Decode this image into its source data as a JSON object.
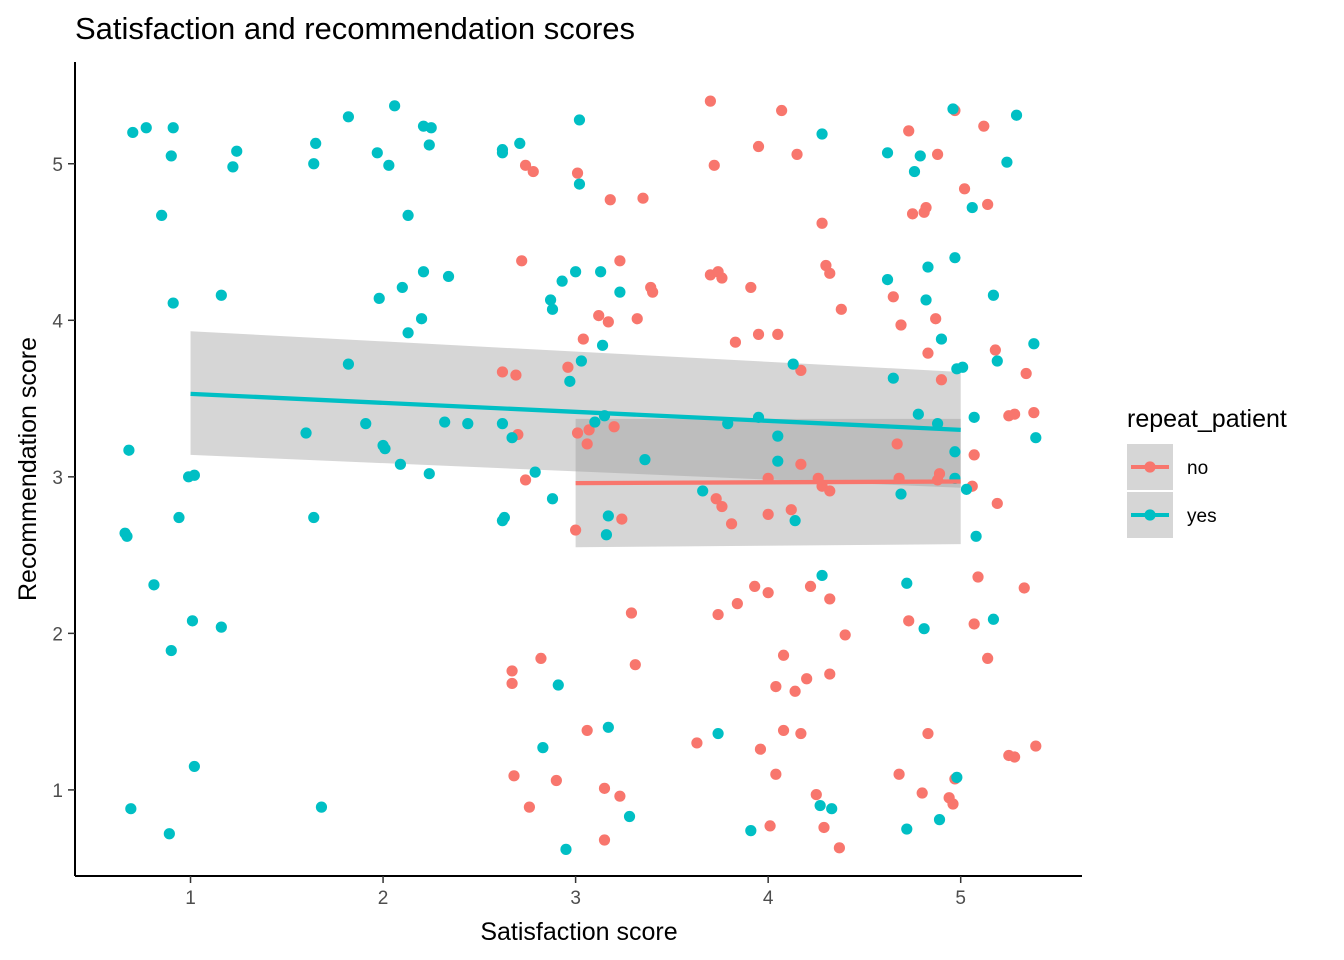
{
  "chart_data": {
    "type": "scatter",
    "title": "Satisfaction and recommendation scores",
    "xlabel": "Satisfaction score",
    "ylabel": "Recommendation score",
    "xlim": [
      0.4,
      5.63
    ],
    "ylim": [
      0.45,
      5.65
    ],
    "x_ticks": [
      "1",
      "2",
      "3",
      "4",
      "5"
    ],
    "y_ticks": [
      "1",
      "2",
      "3",
      "4",
      "5"
    ],
    "grid": false,
    "legend": {
      "title": "repeat_patient",
      "position": "right",
      "entries": [
        "no",
        "yes"
      ]
    },
    "colors": {
      "no": "#F8766D",
      "yes": "#00BFC4",
      "ribbon": "#999999"
    },
    "series": [
      {
        "name": "no",
        "points": [
          [
            3.7,
            5.4
          ],
          [
            3.72,
            4.99
          ],
          [
            3.95,
            5.11
          ],
          [
            4.07,
            5.34
          ],
          [
            4.15,
            5.06
          ],
          [
            4.28,
            4.62
          ],
          [
            3.01,
            4.94
          ],
          [
            2.74,
            4.99
          ],
          [
            2.78,
            4.95
          ],
          [
            3.18,
            4.77
          ],
          [
            3.35,
            4.78
          ],
          [
            3.7,
            4.29
          ],
          [
            3.74,
            4.31
          ],
          [
            3.76,
            4.27
          ],
          [
            2.72,
            4.38
          ],
          [
            3.23,
            4.38
          ],
          [
            3.39,
            4.21
          ],
          [
            3.4,
            4.18
          ],
          [
            3.91,
            4.21
          ],
          [
            4.3,
            4.35
          ],
          [
            4.32,
            4.3
          ],
          [
            4.38,
            4.07
          ],
          [
            3.12,
            4.03
          ],
          [
            3.17,
            3.99
          ],
          [
            3.32,
            4.01
          ],
          [
            3.04,
            3.88
          ],
          [
            3.95,
            3.91
          ],
          [
            4.05,
            3.91
          ],
          [
            3.83,
            3.86
          ],
          [
            4.17,
            3.68
          ],
          [
            2.62,
            3.67
          ],
          [
            2.69,
            3.65
          ],
          [
            2.96,
            3.7
          ],
          [
            2.7,
            3.27
          ],
          [
            3.01,
            3.28
          ],
          [
            3.07,
            3.3
          ],
          [
            3.06,
            3.21
          ],
          [
            3.2,
            3.32
          ],
          [
            2.74,
            2.98
          ],
          [
            3.0,
            2.66
          ],
          [
            3.24,
            2.73
          ],
          [
            3.73,
            2.86
          ],
          [
            3.76,
            2.81
          ],
          [
            3.81,
            2.7
          ],
          [
            4.0,
            2.99
          ],
          [
            4.17,
            3.08
          ],
          [
            4.0,
            2.76
          ],
          [
            4.12,
            2.79
          ],
          [
            4.26,
            2.99
          ],
          [
            4.28,
            2.94
          ],
          [
            4.32,
            2.91
          ],
          [
            3.74,
            2.12
          ],
          [
            3.84,
            2.19
          ],
          [
            3.93,
            2.3
          ],
          [
            4.0,
            2.26
          ],
          [
            4.22,
            2.3
          ],
          [
            4.32,
            2.22
          ],
          [
            4.4,
            1.99
          ],
          [
            4.08,
            1.86
          ],
          [
            4.04,
            1.66
          ],
          [
            4.14,
            1.63
          ],
          [
            4.2,
            1.71
          ],
          [
            4.32,
            1.74
          ],
          [
            3.29,
            2.13
          ],
          [
            3.31,
            1.8
          ],
          [
            2.82,
            1.84
          ],
          [
            2.67,
            1.76
          ],
          [
            2.67,
            1.68
          ],
          [
            3.06,
            1.38
          ],
          [
            3.63,
            1.3
          ],
          [
            3.96,
            1.26
          ],
          [
            4.08,
            1.38
          ],
          [
            4.17,
            1.36
          ],
          [
            2.68,
            1.09
          ],
          [
            2.9,
            1.06
          ],
          [
            3.15,
            1.01
          ],
          [
            3.23,
            0.96
          ],
          [
            4.04,
            1.1
          ],
          [
            4.25,
            0.97
          ],
          [
            2.76,
            0.89
          ],
          [
            3.15,
            0.68
          ],
          [
            4.01,
            0.77
          ],
          [
            4.29,
            0.76
          ],
          [
            4.37,
            0.63
          ],
          [
            4.73,
            5.21
          ],
          [
            4.88,
            5.06
          ],
          [
            4.97,
            5.34
          ],
          [
            5.02,
            4.84
          ],
          [
            5.12,
            5.24
          ],
          [
            5.14,
            4.74
          ],
          [
            4.75,
            4.68
          ],
          [
            4.81,
            4.69
          ],
          [
            4.82,
            4.72
          ],
          [
            4.65,
            4.15
          ],
          [
            4.69,
            3.97
          ],
          [
            4.87,
            4.01
          ],
          [
            4.83,
            3.79
          ],
          [
            4.9,
            3.62
          ],
          [
            5.18,
            3.81
          ],
          [
            5.34,
            3.66
          ],
          [
            5.25,
            3.39
          ],
          [
            5.28,
            3.4
          ],
          [
            5.38,
            3.41
          ],
          [
            4.67,
            3.21
          ],
          [
            4.68,
            2.99
          ],
          [
            4.88,
            2.98
          ],
          [
            4.89,
            3.02
          ],
          [
            5.07,
            3.14
          ],
          [
            5.06,
            2.94
          ],
          [
            5.19,
            2.83
          ],
          [
            4.73,
            2.08
          ],
          [
            5.07,
            2.06
          ],
          [
            5.09,
            2.36
          ],
          [
            5.14,
            1.84
          ],
          [
            5.33,
            2.29
          ],
          [
            4.83,
            1.36
          ],
          [
            4.68,
            1.1
          ],
          [
            4.8,
            0.98
          ],
          [
            4.94,
            0.95
          ],
          [
            4.96,
            0.91
          ],
          [
            4.97,
            1.07
          ],
          [
            5.25,
            1.22
          ],
          [
            5.28,
            1.21
          ],
          [
            5.39,
            1.28
          ]
        ]
      },
      {
        "name": "yes",
        "points": [
          [
            0.7,
            5.2
          ],
          [
            0.77,
            5.23
          ],
          [
            0.91,
            5.23
          ],
          [
            0.9,
            5.05
          ],
          [
            0.85,
            4.67
          ],
          [
            0.91,
            4.11
          ],
          [
            1.16,
            4.16
          ],
          [
            1.22,
            4.98
          ],
          [
            1.24,
            5.08
          ],
          [
            1.64,
            5.0
          ],
          [
            1.65,
            5.13
          ],
          [
            1.82,
            5.3
          ],
          [
            1.97,
            5.07
          ],
          [
            2.03,
            4.99
          ],
          [
            2.06,
            5.37
          ],
          [
            2.21,
            5.24
          ],
          [
            2.25,
            5.23
          ],
          [
            2.24,
            5.12
          ],
          [
            2.13,
            4.67
          ],
          [
            1.98,
            4.14
          ],
          [
            2.1,
            4.21
          ],
          [
            2.21,
            4.31
          ],
          [
            2.34,
            4.28
          ],
          [
            2.2,
            4.01
          ],
          [
            2.13,
            3.92
          ],
          [
            1.82,
            3.72
          ],
          [
            1.91,
            3.34
          ],
          [
            2.0,
            3.2
          ],
          [
            2.01,
            3.18
          ],
          [
            2.09,
            3.08
          ],
          [
            2.24,
            3.02
          ],
          [
            2.32,
            3.35
          ],
          [
            2.44,
            3.34
          ],
          [
            1.6,
            3.28
          ],
          [
            1.64,
            2.74
          ],
          [
            0.68,
            3.17
          ],
          [
            0.99,
            3.0
          ],
          [
            1.02,
            3.01
          ],
          [
            0.94,
            2.74
          ],
          [
            0.66,
            2.64
          ],
          [
            0.67,
            2.62
          ],
          [
            0.81,
            2.31
          ],
          [
            1.01,
            2.08
          ],
          [
            1.16,
            2.04
          ],
          [
            0.9,
            1.89
          ],
          [
            1.02,
            1.15
          ],
          [
            0.69,
            0.88
          ],
          [
            0.89,
            0.72
          ],
          [
            1.68,
            0.89
          ],
          [
            2.62,
            5.09
          ],
          [
            2.62,
            5.07
          ],
          [
            2.71,
            5.13
          ],
          [
            3.02,
            5.28
          ],
          [
            3.02,
            4.87
          ],
          [
            2.87,
            4.13
          ],
          [
            2.88,
            4.07
          ],
          [
            2.93,
            4.25
          ],
          [
            3.0,
            4.31
          ],
          [
            3.13,
            4.31
          ],
          [
            3.23,
            4.18
          ],
          [
            3.03,
            3.74
          ],
          [
            3.14,
            3.84
          ],
          [
            2.97,
            3.61
          ],
          [
            2.62,
            3.34
          ],
          [
            2.67,
            3.25
          ],
          [
            3.1,
            3.35
          ],
          [
            3.15,
            3.39
          ],
          [
            3.36,
            3.11
          ],
          [
            2.79,
            3.03
          ],
          [
            2.88,
            2.86
          ],
          [
            2.62,
            2.72
          ],
          [
            2.63,
            2.74
          ],
          [
            3.17,
            2.75
          ],
          [
            3.16,
            2.63
          ],
          [
            2.91,
            1.67
          ],
          [
            2.83,
            1.27
          ],
          [
            3.17,
            1.4
          ],
          [
            2.95,
            0.62
          ],
          [
            3.28,
            0.83
          ],
          [
            3.66,
            2.91
          ],
          [
            3.74,
            1.36
          ],
          [
            3.91,
            0.74
          ],
          [
            3.79,
            3.34
          ],
          [
            3.95,
            3.38
          ],
          [
            4.05,
            3.26
          ],
          [
            4.05,
            3.1
          ],
          [
            4.13,
            3.72
          ],
          [
            4.14,
            2.72
          ],
          [
            4.28,
            2.37
          ],
          [
            4.28,
            5.19
          ],
          [
            4.27,
            0.9
          ],
          [
            4.33,
            0.88
          ],
          [
            4.62,
            5.07
          ],
          [
            4.76,
            4.95
          ],
          [
            4.79,
            5.05
          ],
          [
            4.62,
            4.26
          ],
          [
            4.83,
            4.34
          ],
          [
            4.82,
            4.13
          ],
          [
            4.9,
            3.88
          ],
          [
            4.97,
            4.4
          ],
          [
            4.96,
            5.35
          ],
          [
            5.06,
            4.72
          ],
          [
            5.17,
            4.16
          ],
          [
            4.65,
            3.63
          ],
          [
            4.78,
            3.4
          ],
          [
            4.88,
            3.34
          ],
          [
            4.69,
            2.89
          ],
          [
            4.98,
            3.69
          ],
          [
            5.01,
            3.7
          ],
          [
            5.19,
            3.74
          ],
          [
            5.07,
            3.38
          ],
          [
            4.97,
            3.16
          ],
          [
            4.97,
            2.99
          ],
          [
            5.03,
            2.92
          ],
          [
            5.08,
            2.62
          ],
          [
            5.24,
            5.01
          ],
          [
            5.29,
            5.31
          ],
          [
            5.38,
            3.85
          ],
          [
            5.39,
            3.25
          ],
          [
            4.72,
            2.32
          ],
          [
            4.81,
            2.03
          ],
          [
            5.17,
            2.09
          ],
          [
            4.98,
            1.08
          ],
          [
            4.72,
            0.75
          ],
          [
            4.89,
            0.81
          ]
        ]
      }
    ],
    "fits": [
      {
        "name": "no",
        "x": [
          3,
          5
        ],
        "y": [
          2.96,
          2.97
        ],
        "ci_lower": [
          2.55,
          2.57
        ],
        "ci_upper": [
          3.37,
          3.37
        ]
      },
      {
        "name": "yes",
        "x": [
          1,
          5
        ],
        "y": [
          3.53,
          3.3
        ],
        "ci_lower": [
          3.14,
          2.93
        ],
        "ci_upper": [
          3.93,
          3.67
        ]
      }
    ]
  }
}
